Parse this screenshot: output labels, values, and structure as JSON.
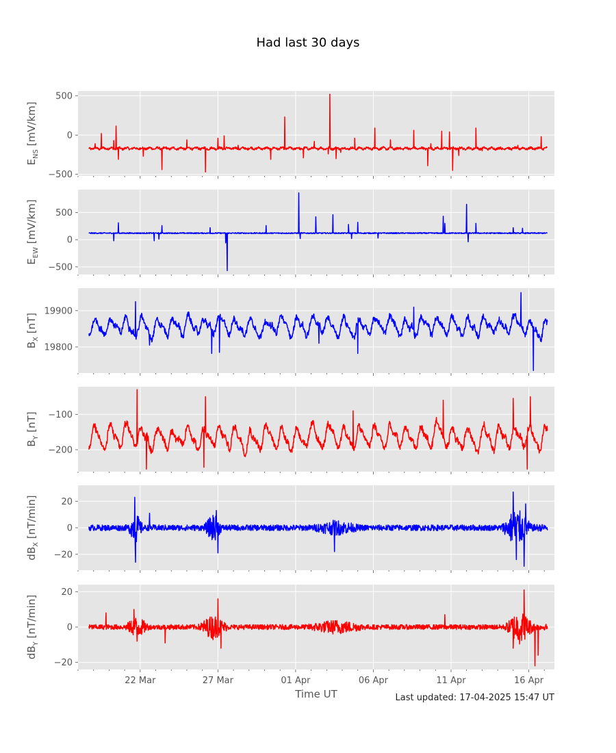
{
  "figure": {
    "title": "Had last 30 days",
    "xlabel": "Time UT",
    "last_updated": "Last updated: 17-04-2025 15:47 UT"
  },
  "chart_data": [
    {
      "type": "line",
      "ylabel": "E_NS [mV/km]",
      "ylabel_parts": [
        "E",
        "NS",
        " [mV/km]"
      ],
      "color": "#ff0000",
      "ylim": [
        -520,
        560
      ],
      "yticks": [
        500,
        0,
        -500
      ],
      "ytick_labels": [
        "500",
        "0",
        "−500"
      ],
      "xlim": [
        0,
        30.65
      ],
      "grid": true,
      "baseline": -170,
      "noise": 14,
      "spikes": [
        [
          1.1,
          -110
        ],
        [
          1.5,
          20
        ],
        [
          2.3,
          -70
        ],
        [
          2.45,
          115
        ],
        [
          2.6,
          -310
        ],
        [
          4.2,
          -270
        ],
        [
          5.4,
          -440
        ],
        [
          5.5,
          -150
        ],
        [
          7.0,
          -60
        ],
        [
          8.2,
          -470
        ],
        [
          9.0,
          -40
        ],
        [
          9.4,
          -10
        ],
        [
          10.3,
          -130
        ],
        [
          12.4,
          -310
        ],
        [
          13.3,
          230
        ],
        [
          14.5,
          -290
        ],
        [
          15.2,
          -80
        ],
        [
          16.1,
          -240
        ],
        [
          16.2,
          520
        ],
        [
          16.6,
          -300
        ],
        [
          16.9,
          -220
        ],
        [
          17.8,
          -40
        ],
        [
          19.1,
          90
        ],
        [
          20.1,
          -60
        ],
        [
          20.6,
          -180
        ],
        [
          21.6,
          60
        ],
        [
          22.5,
          -390
        ],
        [
          22.7,
          -110
        ],
        [
          23.4,
          50
        ],
        [
          23.9,
          40
        ],
        [
          24.1,
          -450
        ],
        [
          24.5,
          -260
        ],
        [
          25.6,
          90
        ],
        [
          26.0,
          -200
        ],
        [
          27.1,
          -180
        ],
        [
          28.3,
          -130
        ],
        [
          29.8,
          -20
        ]
      ]
    },
    {
      "type": "line",
      "ylabel": "E_EW [mV/km]",
      "ylabel_parts": [
        "E",
        "EW",
        " [mV/km]"
      ],
      "color": "#0000ff",
      "ylim": [
        -640,
        920
      ],
      "yticks": [
        500,
        0,
        -500
      ],
      "ytick_labels": [
        "500",
        "0",
        "−500"
      ],
      "xlim": [
        0,
        30.65
      ],
      "grid": true,
      "baseline": 120,
      "noise": 10,
      "spikes": [
        [
          0.3,
          230
        ],
        [
          2.3,
          -20
        ],
        [
          2.6,
          310
        ],
        [
          4.9,
          -20
        ],
        [
          5.2,
          10
        ],
        [
          5.4,
          260
        ],
        [
          8.5,
          220
        ],
        [
          9.5,
          -60
        ],
        [
          9.6,
          -570
        ],
        [
          12.1,
          260
        ],
        [
          14.2,
          860
        ],
        [
          14.3,
          20
        ],
        [
          15.3,
          420
        ],
        [
          16.4,
          460
        ],
        [
          17.4,
          280
        ],
        [
          17.6,
          20
        ],
        [
          18.0,
          320
        ],
        [
          19.3,
          30
        ],
        [
          22.0,
          130
        ],
        [
          23.5,
          430
        ],
        [
          23.6,
          300
        ],
        [
          25.0,
          650
        ],
        [
          25.1,
          -40
        ],
        [
          25.6,
          300
        ],
        [
          28.0,
          220
        ],
        [
          28.6,
          210
        ]
      ]
    },
    {
      "type": "line",
      "ylabel": "B_X [nT]",
      "ylabel_parts": [
        "B",
        "X",
        " [nT]"
      ],
      "color": "#0000ff",
      "ylim": [
        19728,
        19962
      ],
      "yticks": [
        19900,
        19800
      ],
      "ytick_labels": [
        "19900",
        "19800"
      ],
      "xlim": [
        0,
        30.65
      ],
      "grid": true,
      "baseline": 19858,
      "amplitude": 22,
      "noise": 7,
      "spikes": [
        [
          3.7,
          19925
        ],
        [
          4.6,
          19805
        ],
        [
          8.6,
          19782
        ],
        [
          9.1,
          19785
        ],
        [
          15.5,
          19810
        ],
        [
          18.0,
          19782
        ],
        [
          21.6,
          19910
        ],
        [
          28.5,
          19950
        ],
        [
          29.3,
          19735
        ],
        [
          30.3,
          19855
        ]
      ]
    },
    {
      "type": "line",
      "ylabel": "B_Y [nT]",
      "ylabel_parts": [
        "B",
        "Y",
        " [nT]"
      ],
      "color": "#ff0000",
      "ylim": [
        -262,
        -22
      ],
      "yticks": [
        -100,
        -200
      ],
      "ytick_labels": [
        "−100",
        "−200"
      ],
      "xlim": [
        0,
        30.65
      ],
      "grid": true,
      "baseline": -165,
      "amplitude": 28,
      "noise": 8,
      "spikes": [
        [
          3.8,
          -30
        ],
        [
          4.4,
          -255
        ],
        [
          8.2,
          -50
        ],
        [
          8.1,
          -250
        ],
        [
          17.7,
          -90
        ],
        [
          23.5,
          -60
        ],
        [
          28.0,
          -55
        ],
        [
          28.9,
          -255
        ],
        [
          29.1,
          -50
        ],
        [
          30.3,
          -205
        ]
      ]
    },
    {
      "type": "line",
      "ylabel": "dB_X [nT/min]",
      "ylabel_parts": [
        "dB",
        "X",
        " [nT/min]"
      ],
      "color": "#0000ff",
      "ylim": [
        -32,
        32
      ],
      "yticks": [
        20,
        0,
        -20
      ],
      "ytick_labels": [
        "20",
        "0",
        "−20"
      ],
      "xlim": [
        0,
        30.65
      ],
      "grid": true,
      "baseline": 0,
      "noise": 2.2,
      "bursts": [
        [
          3.7,
          0.5,
          10
        ],
        [
          8.7,
          0.6,
          9
        ],
        [
          16.6,
          1.6,
          4
        ],
        [
          28.2,
          1.0,
          11
        ]
      ],
      "spikes": [
        [
          3.65,
          23
        ],
        [
          3.7,
          -26
        ],
        [
          4.6,
          11
        ],
        [
          8.9,
          13
        ],
        [
          9.0,
          -19
        ],
        [
          16.5,
          -18
        ],
        [
          28.0,
          27
        ],
        [
          28.2,
          -24
        ],
        [
          28.7,
          -29
        ],
        [
          28.8,
          18
        ]
      ]
    },
    {
      "type": "line",
      "ylabel": "dB_Y [nT/min]",
      "ylabel_parts": [
        "dB",
        "Y",
        " [nT/min]"
      ],
      "color": "#ff0000",
      "ylim": [
        -24,
        24
      ],
      "yticks": [
        20,
        0,
        -20
      ],
      "ytick_labels": [
        "20",
        "0",
        "−20"
      ],
      "xlim": [
        0,
        30.65
      ],
      "grid": true,
      "baseline": 0,
      "noise": 1.4,
      "bursts": [
        [
          3.8,
          0.8,
          5
        ],
        [
          8.7,
          1.0,
          6
        ],
        [
          16.6,
          2.0,
          3
        ],
        [
          28.4,
          1.0,
          7
        ]
      ],
      "spikes": [
        [
          1.8,
          8
        ],
        [
          3.6,
          10
        ],
        [
          3.8,
          -8
        ],
        [
          5.6,
          -9
        ],
        [
          9.0,
          16
        ],
        [
          9.2,
          -12
        ],
        [
          23.6,
          7
        ],
        [
          28.0,
          -12
        ],
        [
          28.7,
          21
        ],
        [
          29.4,
          -22
        ],
        [
          29.6,
          -16
        ]
      ]
    }
  ],
  "x_axis": {
    "ticks": [
      4,
      9,
      14,
      19,
      24,
      29
    ],
    "tick_labels": [
      "22 Mar",
      "27 Mar",
      "01 Apr",
      "06 Apr",
      "11 Apr",
      "16 Apr"
    ]
  }
}
